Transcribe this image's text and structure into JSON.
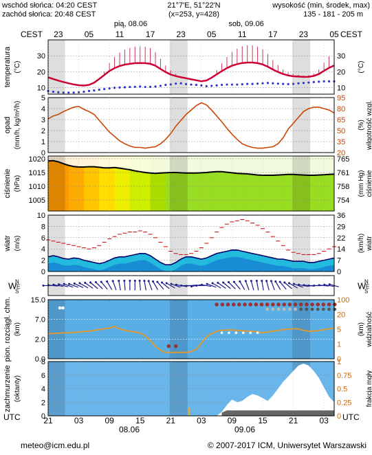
{
  "header": {
    "sunrise": "wschód słońca: 04:20 CEST",
    "sunset": "zachód słońca: 20:48 CEST",
    "coords": "21°7'E, 51°22'N",
    "grid": "(x=253, y=428)",
    "elevation_title": "wysokość (min, środek, max)",
    "elevation_values": "135 - 181 - 205 m",
    "day1": "pią, 08.06",
    "day2": "sob, 09.06",
    "tz_top": "CEST",
    "tz_bottom": "UTC"
  },
  "footer": {
    "email": "meteo@icm.edu.pl",
    "copyright": "© 2007-2017 ICM, Uniwersytet Warszawski",
    "date1": "08.06",
    "date2": "09.06"
  },
  "chart_data": {
    "type": "line",
    "x_hours_utc": [
      21,
      22,
      23,
      0,
      1,
      2,
      3,
      4,
      5,
      6,
      7,
      8,
      9,
      10,
      11,
      12,
      13,
      14,
      15,
      16,
      17,
      18,
      19,
      20,
      21,
      22,
      23,
      0,
      1,
      2,
      3,
      4,
      5,
      6,
      7,
      8,
      9,
      10,
      11,
      12,
      13,
      14,
      15,
      16,
      17,
      18,
      19,
      20,
      21,
      22,
      23,
      0,
      1,
      2,
      3,
      4,
      5
    ],
    "top_ticks_cest": [
      "23",
      "05",
      "11",
      "17",
      "23",
      "05",
      "11",
      "17",
      "23",
      "05"
    ],
    "bottom_ticks_utc": [
      "21",
      "03",
      "09",
      "15",
      "21",
      "03",
      "09",
      "15",
      "21",
      "03"
    ],
    "panels": [
      {
        "name": "temperature",
        "left_label": "temperatura",
        "left_unit": "(°C)",
        "right_label": "",
        "right_unit": "(°C)",
        "ylim": [
          6,
          40
        ],
        "left_ticks": [
          10,
          20,
          30
        ],
        "right_ticks": [
          10,
          20,
          30
        ],
        "series": [
          {
            "name": "temperatura",
            "color": "#cc0033",
            "values": [
              16.5,
              15.5,
              14.5,
              13.6,
              12.8,
              12.1,
              11.6,
              11.4,
              11.8,
              13.2,
              15.5,
              18.0,
              20.5,
              22.3,
              23.6,
              24.5,
              25.0,
              25.4,
              25.5,
              25.4,
              25.0,
              23.8,
              21.8,
              19.8,
              18.3,
              17.3,
              16.6,
              16.0,
              15.3,
              14.7,
              14.1,
              14.6,
              16.3,
              18.4,
              20.4,
              22.3,
              23.8,
              24.8,
              25.5,
              25.8,
              25.8,
              25.4,
              24.6,
              23.2,
              21.4,
              19.9,
              18.6,
              17.7,
              17.2,
              17.0,
              16.8,
              16.9,
              17.4,
              18.6,
              20.6,
              22.5,
              24.0
            ]
          },
          {
            "name": "punkt rosy",
            "color": "#3333cc",
            "values": [
              8,
              7.5,
              7.2,
              7,
              7,
              7,
              7.2,
              7.5,
              8,
              8.3,
              8.8,
              9.2,
              9.6,
              10,
              10.2,
              10.3,
              10.5,
              10.6,
              10.8,
              10.5,
              10.6,
              10.8,
              11.2,
              11.8,
              12.1,
              12.6,
              12.8,
              12.3,
              12,
              11.8,
              11.5,
              11,
              11.2,
              11.5,
              11.8,
              12,
              12,
              12,
              12.2,
              12.4,
              12.4,
              12.6,
              12.8,
              13,
              12.8,
              12.6,
              12.4,
              12.3,
              12.4,
              12.8,
              13,
              13.3,
              13.6,
              13.8,
              14,
              14,
              14
            ]
          }
        ]
      },
      {
        "name": "precipitation",
        "left_label": "opad",
        "left_unit": "(mm/h, kg/m²/h)",
        "right_label": "wilgotność wzgl.",
        "right_unit": "(%)",
        "ylim": [
          0,
          5
        ],
        "left_ticks": [
          0,
          1,
          2,
          3,
          4,
          5
        ],
        "right_ticks": [
          20,
          35,
          50,
          65,
          80,
          95
        ],
        "series": [
          {
            "name": "wilgotność wzgl.",
            "color": "#cc4400",
            "values": [
              66,
              70,
              72,
              76,
              79,
              82,
              83,
              79,
              76,
              72,
              64,
              56,
              48,
              42,
              36,
              32,
              29,
              27,
              27,
              26,
              27,
              28,
              32,
              38,
              46,
              56,
              64,
              72,
              78,
              84,
              88,
              85,
              78,
              70,
              62,
              53,
              45,
              38,
              32,
              29,
              27,
              26,
              26,
              27,
              28,
              32,
              40,
              52,
              60,
              68,
              76,
              80,
              82,
              82,
              80,
              78,
              74
            ]
          }
        ]
      },
      {
        "name": "pressure",
        "left_label": "ciśnienie",
        "left_unit": "(hPa)",
        "right_label": "ciśnienie",
        "right_unit": "(mm Hg)",
        "ylim": [
          1001,
          1021
        ],
        "left_ticks": [
          1005,
          1010,
          1015,
          1020
        ],
        "right_ticks": [
          "754",
          "758",
          "761",
          "765"
        ],
        "series": [
          {
            "name": "ciśnienie",
            "color": "#000000",
            "values": [
              1019.2,
              1019.3,
              1018.9,
              1018.2,
              1017.6,
              1017.2,
              1017.0,
              1017.0,
              1017.1,
              1017.1,
              1016.9,
              1016.7,
              1016.7,
              1016.8,
              1016.6,
              1016.3,
              1016.0,
              1015.6,
              1015.3,
              1015.0,
              1014.8,
              1014.7,
              1014.8,
              1014.9,
              1015.0,
              1015.0,
              1014.9,
              1014.8,
              1014.8,
              1014.8,
              1014.9,
              1015.0,
              1015.2,
              1015.3,
              1015.3,
              1015.1,
              1014.9,
              1014.7,
              1014.6,
              1014.5,
              1014.3,
              1014.1,
              1014.0,
              1014.0,
              1014.0,
              1014.1,
              1014.2,
              1014.3,
              1014.3,
              1014.2,
              1014.1,
              1014.0,
              1014.0,
              1014.1,
              1014.2,
              1014.3,
              1014.4
            ]
          }
        ]
      },
      {
        "name": "wind",
        "left_label": "wiatr",
        "left_unit": "(m/s)",
        "right_label": "wiatr",
        "right_unit": "(km/h)",
        "ylim": [
          0,
          10
        ],
        "left_ticks": [
          0,
          2,
          4,
          6,
          8,
          10
        ],
        "right_ticks": [
          0,
          7,
          14,
          22,
          29,
          36
        ],
        "series": [
          {
            "name": "prędkość",
            "color": "#000066",
            "values": [
              2.6,
              2.8,
              2.6,
              2.3,
              2.2,
              2.4,
              2.3,
              2.0,
              1.8,
              1.6,
              1.4,
              1.6,
              2.0,
              2.4,
              2.6,
              2.6,
              2.8,
              3.0,
              3.2,
              3.2,
              2.8,
              2.2,
              1.6,
              1.2,
              1.2,
              1.6,
              2.2,
              2.6,
              2.6,
              2.4,
              2.2,
              2.4,
              2.8,
              3.2,
              3.4,
              3.6,
              3.8,
              3.8,
              3.6,
              3.4,
              3.2,
              3.0,
              2.8,
              2.6,
              2.4,
              2.2,
              2.2,
              2.0,
              1.8,
              1.8,
              1.8,
              1.6,
              1.6,
              1.8,
              2.0,
              2.2,
              2.4
            ]
          },
          {
            "name": "porywy",
            "color": "#cc0000",
            "values": [
              5.6,
              5.4,
              5.2,
              5.0,
              4.8,
              4.6,
              4.4,
              4.2,
              4.0,
              4.2,
              4.6,
              5.2,
              5.8,
              6.2,
              6.6,
              6.8,
              7.0,
              7.0,
              7.2,
              7.0,
              6.6,
              6.0,
              5.2,
              4.4,
              3.6,
              3.2,
              3.0,
              3.0,
              3.2,
              3.6,
              4.2,
              5.0,
              6.0,
              7.0,
              7.8,
              8.4,
              8.8,
              9.0,
              9.2,
              9.0,
              8.6,
              8.2,
              7.6,
              7.0,
              6.2,
              5.4,
              4.6,
              3.8,
              3.4,
              3.2,
              3.0,
              3.0,
              3.0,
              3.2,
              3.6,
              4.0,
              4.4
            ]
          }
        ]
      },
      {
        "name": "wind_direction",
        "left_label": "W",
        "right_label": "W",
        "compass": [
          "N",
          "E",
          "S"
        ],
        "directions_deg": [
          270,
          275,
          280,
          285,
          290,
          290,
          295,
          300,
          305,
          310,
          315,
          320,
          330,
          340,
          350,
          355,
          360,
          360,
          355,
          350,
          340,
          330,
          320,
          310,
          300,
          290,
          280,
          270,
          265,
          260,
          270,
          280,
          290,
          300,
          305,
          310,
          315,
          320,
          330,
          340,
          345,
          350,
          350,
          345,
          340,
          330,
          320,
          310,
          300,
          290,
          280,
          275,
          270,
          270,
          275,
          280,
          285
        ]
      },
      {
        "name": "clouds",
        "left_label": "pion. rozciągł. chm.",
        "left_unit": "(km)",
        "right_label": "widzialność",
        "right_unit": "(km)",
        "ylim": [
          0,
          15
        ],
        "left_ticks": [
          "0.0",
          "2.0",
          "7.0",
          "15.0"
        ],
        "right_ticks": [
          "0",
          "1",
          "5",
          "20",
          "100"
        ],
        "series": [
          {
            "name": "widzialność",
            "color": "#dd9933",
            "values": [
              6.4,
              6.4,
              6.5,
              6.6,
              6.6,
              6.7,
              6.8,
              6.9,
              7.0,
              7.2,
              7.4,
              7.6,
              7.8,
              8.2,
              7.6,
              7.2,
              7.0,
              6.8,
              6.6,
              5.8,
              4.6,
              3.2,
              2.2,
              1.6,
              1.6,
              1.6,
              1.6,
              1.6,
              1.8,
              2.4,
              4.0,
              5.6,
              6.4,
              7.0,
              7.2,
              7.3,
              7.3,
              7.2,
              7.1,
              7.0,
              7.0,
              6.8,
              6.6,
              6.8,
              7.0,
              7.2,
              7.4,
              7.5,
              7.6,
              7.6,
              7.2,
              7.0,
              7.0,
              7.2,
              7.4,
              7.6,
              7.8
            ]
          }
        ]
      },
      {
        "name": "cloud_cover",
        "left_label": "zachmurzenie",
        "left_unit": "(oktanty)",
        "right_label": "frakcja mgły",
        "right_unit": "",
        "ylim": [
          0,
          8
        ],
        "left_ticks": [
          0,
          2,
          4,
          6,
          8
        ],
        "right_ticks": [
          "0",
          "0.25",
          "0.5",
          "0.75",
          "1"
        ],
        "series": [
          {
            "name": "całkowite",
            "color": "#ffffff",
            "values": [
              0,
              0,
              0,
              0,
              0,
              0,
              0,
              0,
              0,
              0,
              0,
              0,
              0,
              0,
              0,
              0,
              0,
              0,
              0,
              0,
              0,
              0,
              0,
              0,
              0,
              0,
              0,
              0,
              0,
              0,
              0,
              0,
              0,
              0,
              0.6,
              1.6,
              2.4,
              2.0,
              2.2,
              2.8,
              3.2,
              3.0,
              2.6,
              2.2,
              3.0,
              4.0,
              5.0,
              5.8,
              6.6,
              7.4,
              7.7,
              7.4,
              6.6,
              5.6,
              4.2,
              2.8,
              2.0
            ]
          }
        ]
      }
    ]
  }
}
